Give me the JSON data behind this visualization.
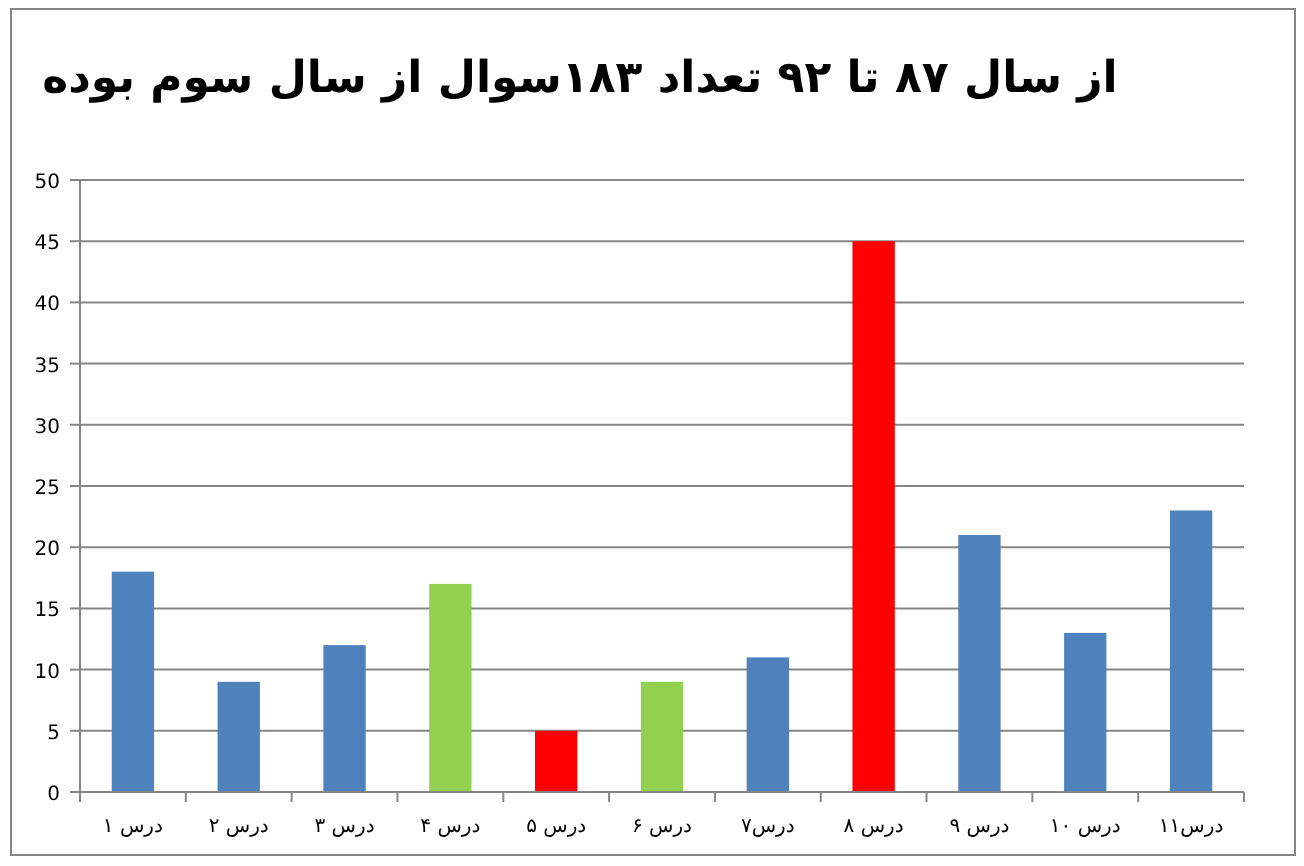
{
  "chart_data": {
    "type": "bar",
    "title": "از سال ۸۷ تا ۹۲ تعداد ۱۸۳سوال از سال سوم بوده",
    "categories": [
      "درس ۱",
      "درس ۲",
      "درس ۳",
      "درس ۴",
      "درس ۵",
      "درس ۶",
      "درس۷",
      "درس ۸",
      "درس ۹",
      "درس ۱۰",
      "درس۱۱"
    ],
    "values": [
      18,
      9,
      12,
      17,
      5,
      9,
      11,
      45,
      21,
      13,
      23
    ],
    "colors": [
      "#4f81bd",
      "#4f81bd",
      "#4f81bd",
      "#92d050",
      "#ff0000",
      "#92d050",
      "#4f81bd",
      "#ff0000",
      "#4f81bd",
      "#4f81bd",
      "#4f81bd"
    ],
    "ylim": [
      0,
      50
    ],
    "yticks": [
      0,
      5,
      10,
      15,
      20,
      25,
      30,
      35,
      40,
      45,
      50
    ],
    "grid": "y"
  }
}
